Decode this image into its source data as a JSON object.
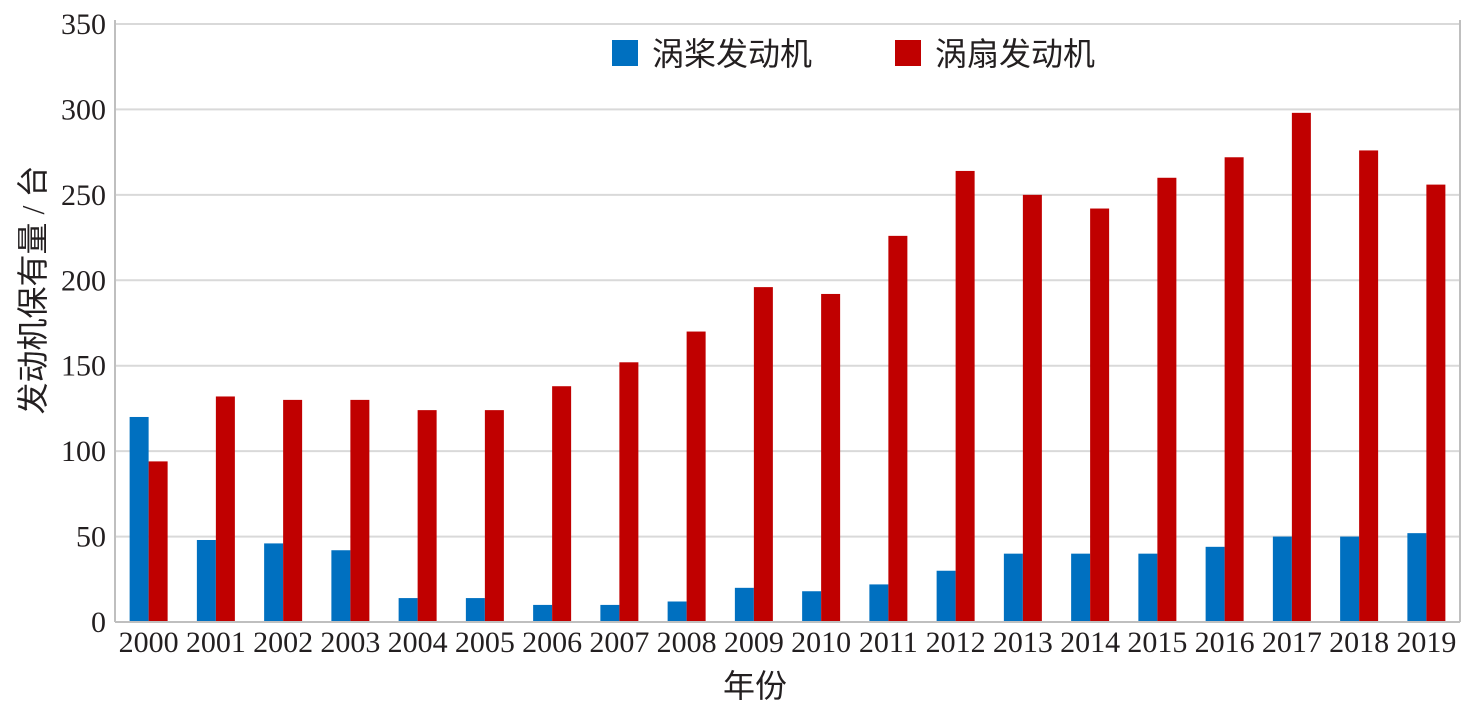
{
  "chart_data": {
    "type": "bar",
    "title": "",
    "xlabel": "年份",
    "ylabel": "发动机保有量 / 台",
    "ylim": [
      0,
      350
    ],
    "yticks": [
      0,
      50,
      100,
      150,
      200,
      250,
      300,
      350
    ],
    "grid": true,
    "legend_position": "top-center",
    "categories": [
      "2000",
      "2001",
      "2002",
      "2003",
      "2004",
      "2005",
      "2006",
      "2007",
      "2008",
      "2009",
      "2010",
      "2011",
      "2012",
      "2013",
      "2014",
      "2015",
      "2016",
      "2017",
      "2018",
      "2019"
    ],
    "series": [
      {
        "name": "涡桨发动机",
        "color": "#0070c0",
        "values": [
          120,
          48,
          46,
          42,
          14,
          14,
          10,
          10,
          12,
          20,
          18,
          22,
          30,
          40,
          40,
          40,
          44,
          50,
          50,
          52
        ]
      },
      {
        "name": "涡扇发动机",
        "color": "#c00000",
        "values": [
          94,
          132,
          130,
          130,
          124,
          124,
          138,
          152,
          170,
          196,
          192,
          226,
          264,
          250,
          242,
          260,
          272,
          298,
          276,
          256
        ]
      }
    ]
  }
}
